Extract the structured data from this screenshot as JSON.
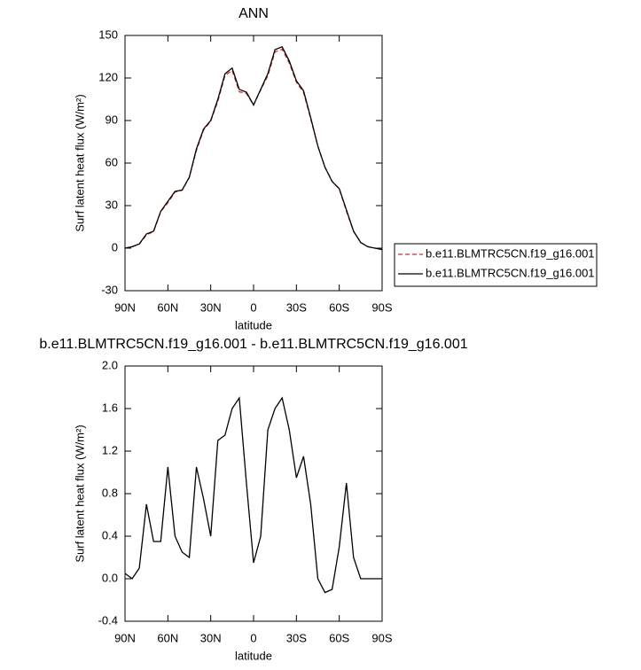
{
  "chart_data": [
    {
      "type": "line",
      "title": "ANN",
      "xlabel": "latitude",
      "ylabel": "Surf latent heat flux (W/m²)",
      "x": [
        90,
        85,
        80,
        75,
        70,
        65,
        60,
        55,
        50,
        45,
        40,
        35,
        30,
        25,
        20,
        15,
        10,
        5,
        0,
        -5,
        -10,
        -15,
        -20,
        -25,
        -30,
        -35,
        -40,
        -45,
        -50,
        -55,
        -60,
        -65,
        -70,
        -75,
        -80,
        -85,
        -90
      ],
      "series": [
        {
          "name": "b.e11.BLMTRC5CN.f19_g16.001",
          "color": "#d62728",
          "dash": true,
          "values": [
            0,
            1,
            2.9,
            9.3,
            11.7,
            25.7,
            32,
            39.6,
            40.8,
            49.8,
            69,
            83.3,
            89.6,
            103.7,
            121.7,
            125.4,
            110.3,
            109.1,
            100.9,
            111.6,
            121.6,
            138.4,
            140.3,
            130.6,
            117,
            109.8,
            91.3,
            72,
            57.1,
            47.1,
            41.7,
            26.1,
            11.8,
            4,
            1,
            0,
            -1
          ]
        },
        {
          "name": "b.e11.BLMTRC5CN.f19_g16.001",
          "color": "#000000",
          "dash": false,
          "values": [
            0,
            1,
            3,
            10,
            12,
            26,
            33,
            40,
            41,
            50,
            70,
            84,
            90,
            105,
            123,
            127,
            112,
            110,
            101,
            112,
            123,
            140,
            142,
            132,
            118,
            111,
            92,
            72,
            57,
            47,
            42,
            27,
            12,
            4,
            1,
            0,
            -1
          ]
        }
      ],
      "xlim": [
        90,
        -90
      ],
      "xticks": [
        {
          "value": 90,
          "label": "90N"
        },
        {
          "value": 60,
          "label": "60N"
        },
        {
          "value": 30,
          "label": "30N"
        },
        0,
        {
          "value": -30,
          "label": "30S"
        },
        {
          "value": -60,
          "label": "60S"
        },
        {
          "value": -90,
          "label": "90S"
        }
      ],
      "ylim": [
        -30,
        150
      ],
      "yticks": [
        -30,
        0,
        30,
        60,
        90,
        120,
        150
      ],
      "legend": "right"
    },
    {
      "type": "line",
      "title": "b.e11.BLMTRC5CN.f19_g16.001 - b.e11.BLMTRC5CN.f19_g16.001",
      "xlabel": "latitude",
      "ylabel": "Surf latent heat flux (W/m²)",
      "x": [
        90,
        85,
        80,
        75,
        70,
        65,
        60,
        55,
        50,
        45,
        40,
        35,
        30,
        25,
        20,
        15,
        10,
        5,
        0,
        -5,
        -10,
        -15,
        -20,
        -25,
        -30,
        -35,
        -40,
        -45,
        -50,
        -55,
        -60,
        -65,
        -70,
        -75,
        -80,
        -85,
        -90
      ],
      "series": [
        {
          "color": "#000000",
          "dash": false,
          "values": [
            0.05,
            0,
            0.1,
            0.7,
            0.35,
            0.35,
            1.05,
            0.4,
            0.25,
            0.2,
            1.05,
            0.75,
            0.4,
            1.3,
            1.35,
            1.6,
            1.7,
            0.9,
            0.15,
            0.4,
            1.4,
            1.6,
            1.7,
            1.4,
            0.95,
            1.15,
            0.7,
            0,
            -0.13,
            -0.1,
            0.3,
            0.9,
            0.2,
            0,
            0,
            0,
            0
          ]
        }
      ],
      "xlim": [
        90,
        -90
      ],
      "xticks": [
        {
          "value": 90,
          "label": "90N"
        },
        {
          "value": 60,
          "label": "60N"
        },
        {
          "value": 30,
          "label": "30N"
        },
        0,
        {
          "value": -30,
          "label": "30S"
        },
        {
          "value": -60,
          "label": "60S"
        },
        {
          "value": -90,
          "label": "90S"
        }
      ],
      "ylim": [
        -0.4,
        2.0
      ],
      "yticks": [
        -0.4,
        {
          "value": 0,
          "label": "0.0"
        },
        0.4,
        0.8,
        1.2,
        1.6,
        {
          "value": 2,
          "label": "2.0"
        }
      ]
    }
  ]
}
